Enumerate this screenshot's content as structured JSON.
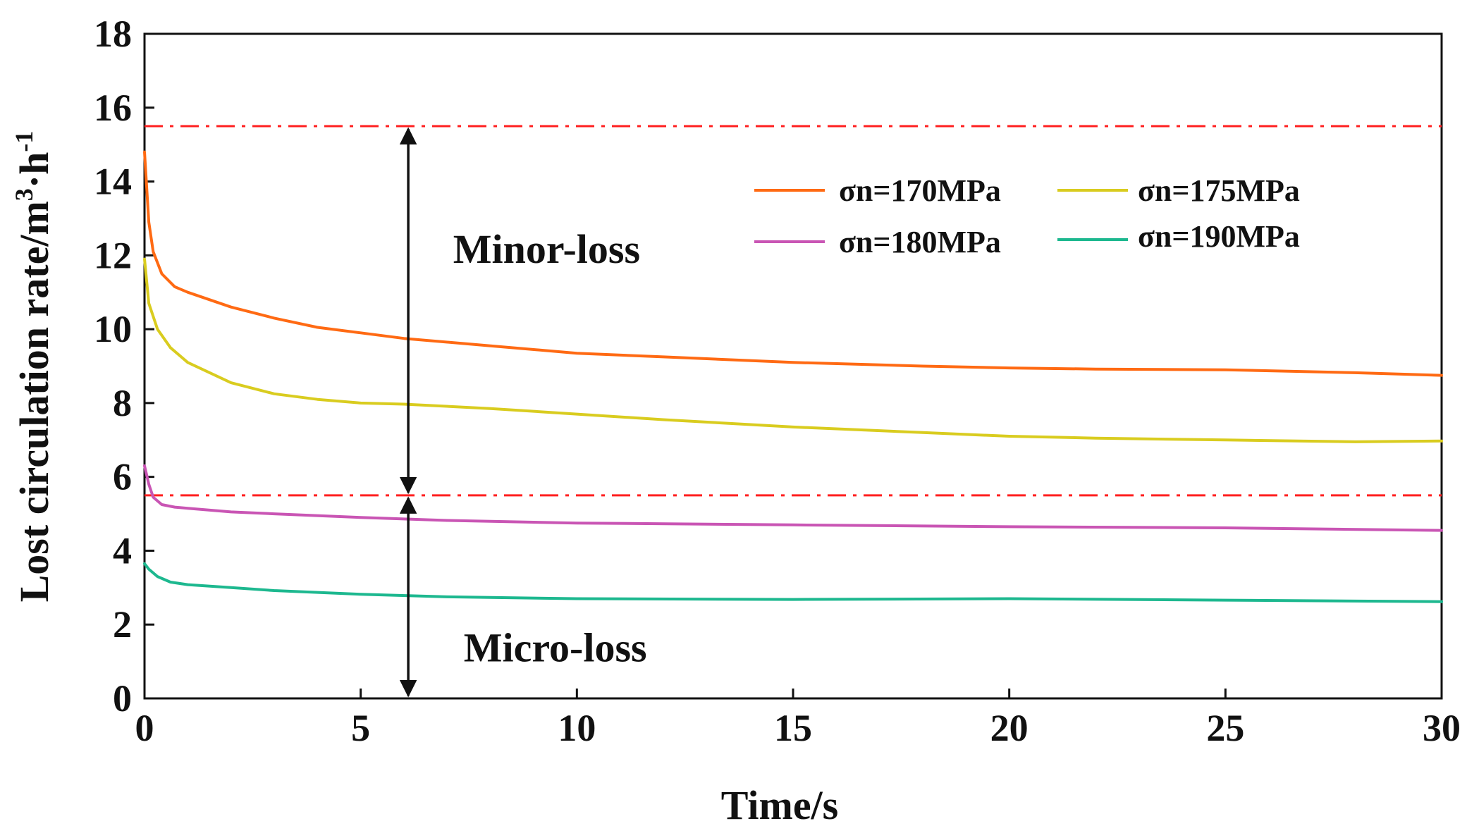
{
  "chart_data": {
    "type": "line",
    "title": "",
    "xlabel": "Time/s",
    "ylabel": "Lost circulation rate/m³·h⁻¹",
    "ylabel_parts": {
      "base": "Lost circulation rate/m",
      "sup1": "3",
      "mid": "·h",
      "sup2": "-1"
    },
    "xlim": [
      0,
      30
    ],
    "ylim": [
      0,
      18
    ],
    "xticks": [
      0,
      5,
      10,
      15,
      20,
      25,
      30
    ],
    "yticks": [
      0,
      2,
      4,
      6,
      8,
      10,
      12,
      14,
      16,
      18
    ],
    "grid": false,
    "legend_position": "upper-right",
    "series": [
      {
        "name": "σn=170MPa",
        "color": "#FF6A13",
        "x": [
          0,
          0.1,
          0.2,
          0.4,
          0.7,
          1,
          2,
          3,
          4,
          5,
          6,
          8,
          10,
          12,
          15,
          18,
          20,
          22,
          25,
          28,
          30
        ],
        "y": [
          14.8,
          12.9,
          12.1,
          11.5,
          11.15,
          11.0,
          10.6,
          10.3,
          10.05,
          9.9,
          9.75,
          9.55,
          9.35,
          9.25,
          9.1,
          9.0,
          8.95,
          8.92,
          8.9,
          8.82,
          8.75
        ]
      },
      {
        "name": "σn=175MPa",
        "color": "#D9CC1F",
        "x": [
          0,
          0.1,
          0.3,
          0.6,
          1,
          2,
          3,
          4,
          5,
          6,
          8,
          10,
          12,
          15,
          18,
          20,
          22,
          25,
          28,
          30
        ],
        "y": [
          11.9,
          10.7,
          10.0,
          9.5,
          9.1,
          8.55,
          8.25,
          8.1,
          8.0,
          7.97,
          7.85,
          7.7,
          7.55,
          7.35,
          7.2,
          7.1,
          7.05,
          7.0,
          6.95,
          6.97
        ]
      },
      {
        "name": "σn=180MPa",
        "color": "#C955B4",
        "x": [
          0,
          0.1,
          0.2,
          0.4,
          0.7,
          1,
          2,
          3,
          5,
          7,
          10,
          15,
          20,
          25,
          30
        ],
        "y": [
          6.3,
          5.8,
          5.45,
          5.25,
          5.18,
          5.15,
          5.05,
          5.0,
          4.9,
          4.82,
          4.75,
          4.7,
          4.65,
          4.62,
          4.55
        ]
      },
      {
        "name": "σn=190MPa",
        "color": "#1DB88F",
        "x": [
          0,
          0.1,
          0.3,
          0.6,
          1,
          2,
          3,
          5,
          7,
          10,
          15,
          20,
          25,
          30
        ],
        "y": [
          3.65,
          3.5,
          3.3,
          3.15,
          3.08,
          3.0,
          2.92,
          2.82,
          2.75,
          2.7,
          2.68,
          2.7,
          2.66,
          2.62
        ]
      }
    ],
    "reference_lines": [
      {
        "y": 15.5,
        "style": "dash-dot",
        "color": "#FF2020"
      },
      {
        "y": 5.5,
        "style": "dash-dot",
        "color": "#FF2020"
      }
    ],
    "annotations": [
      {
        "text": "Minor-loss",
        "x": 9.3,
        "y": 11.8,
        "arrow_x": 6.1,
        "arrow_from_y": 15.5,
        "arrow_to_y": 5.5
      },
      {
        "text": "Micro-loss",
        "x": 9.5,
        "y": 1.0,
        "arrow_x": 6.1,
        "arrow_from_y": 5.5,
        "arrow_to_y": 0
      }
    ]
  }
}
